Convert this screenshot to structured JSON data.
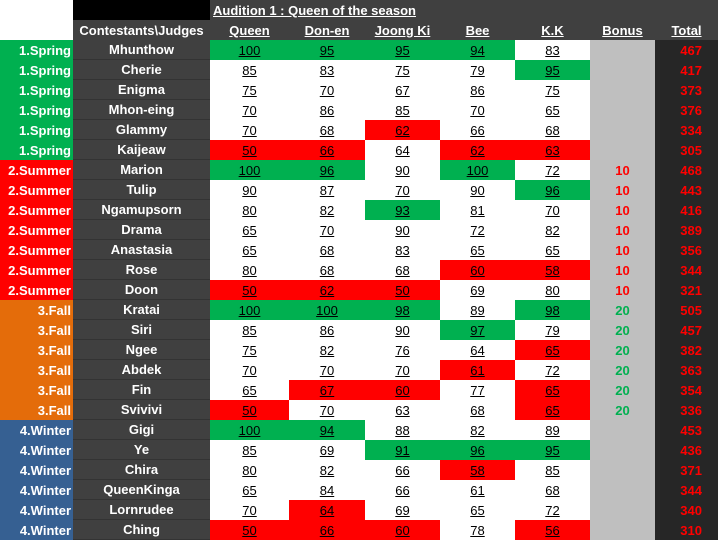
{
  "title": "Audition 1 : Queen of the season",
  "corner_label": "Contestants\\Judges",
  "judges": [
    "Queen",
    "Don-en",
    "Joong Ki",
    "Bee",
    "K.K"
  ],
  "bonus_label": "Bonus",
  "total_label": "Total",
  "colors": {
    "spring": "#00b050",
    "summer": "#ff0000",
    "fall": "#e46c0a",
    "winter": "#366092",
    "high": "#00b050",
    "low": "#ff0000",
    "normal": "#ffffff",
    "name_bg": "#404040",
    "header_bg": "#404040",
    "bonus_bg": "#bfbfbf",
    "total_bg": "#262626",
    "total_text": "#ff0000",
    "bonus_summer_text": "#ff0000",
    "bonus_fall_text": "#00b050"
  },
  "rows": [
    {
      "group": "1.Spring",
      "season": "spring",
      "name": "Mhunthow",
      "scores": [
        100,
        95,
        95,
        94,
        83
      ],
      "hl": [
        "h",
        "h",
        "h",
        "h",
        "n"
      ],
      "bonus": "",
      "total": 467
    },
    {
      "group": "1.Spring",
      "season": "spring",
      "name": "Cherie",
      "scores": [
        85,
        83,
        75,
        79,
        95
      ],
      "hl": [
        "n",
        "n",
        "n",
        "n",
        "h"
      ],
      "bonus": "",
      "total": 417
    },
    {
      "group": "1.Spring",
      "season": "spring",
      "name": "Enigma",
      "scores": [
        75,
        70,
        67,
        86,
        75
      ],
      "hl": [
        "n",
        "n",
        "n",
        "n",
        "n"
      ],
      "bonus": "",
      "total": 373
    },
    {
      "group": "1.Spring",
      "season": "spring",
      "name": "Mhon-eing",
      "scores": [
        70,
        86,
        85,
        70,
        65
      ],
      "hl": [
        "n",
        "n",
        "n",
        "n",
        "n"
      ],
      "bonus": "",
      "total": 376
    },
    {
      "group": "1.Spring",
      "season": "spring",
      "name": "Glammy",
      "scores": [
        70,
        68,
        62,
        66,
        68
      ],
      "hl": [
        "n",
        "n",
        "l",
        "n",
        "n"
      ],
      "bonus": "",
      "total": 334
    },
    {
      "group": "1.Spring",
      "season": "spring",
      "name": "Kaijeaw",
      "scores": [
        50,
        66,
        64,
        62,
        63
      ],
      "hl": [
        "l",
        "l",
        "n",
        "l",
        "l"
      ],
      "bonus": "",
      "total": 305
    },
    {
      "group": "2.Summer",
      "season": "summer",
      "name": "Marion",
      "scores": [
        100,
        96,
        90,
        100,
        72
      ],
      "hl": [
        "h",
        "h",
        "n",
        "h",
        "n"
      ],
      "bonus": "10",
      "total": 468
    },
    {
      "group": "2.Summer",
      "season": "summer",
      "name": "Tulip",
      "scores": [
        90,
        87,
        70,
        90,
        96
      ],
      "hl": [
        "n",
        "n",
        "n",
        "n",
        "h"
      ],
      "bonus": "10",
      "total": 443
    },
    {
      "group": "2.Summer",
      "season": "summer",
      "name": "Ngamupsorn",
      "scores": [
        80,
        82,
        93,
        81,
        70
      ],
      "hl": [
        "n",
        "n",
        "h",
        "n",
        "n"
      ],
      "bonus": "10",
      "total": 416
    },
    {
      "group": "2.Summer",
      "season": "summer",
      "name": "Drama",
      "scores": [
        65,
        70,
        90,
        72,
        82
      ],
      "hl": [
        "n",
        "n",
        "n",
        "n",
        "n"
      ],
      "bonus": "10",
      "total": 389
    },
    {
      "group": "2.Summer",
      "season": "summer",
      "name": "Anastasia",
      "scores": [
        65,
        68,
        83,
        65,
        65
      ],
      "hl": [
        "n",
        "n",
        "n",
        "n",
        "n"
      ],
      "bonus": "10",
      "total": 356
    },
    {
      "group": "2.Summer",
      "season": "summer",
      "name": "Rose",
      "scores": [
        80,
        68,
        68,
        60,
        58
      ],
      "hl": [
        "n",
        "n",
        "n",
        "l",
        "l"
      ],
      "bonus": "10",
      "total": 344
    },
    {
      "group": "2.Summer",
      "season": "summer",
      "name": "Doon",
      "scores": [
        50,
        62,
        50,
        69,
        80
      ],
      "hl": [
        "l",
        "l",
        "l",
        "n",
        "n"
      ],
      "bonus": "10",
      "total": 321
    },
    {
      "group": "3.Fall",
      "season": "fall",
      "name": "Kratai",
      "scores": [
        100,
        100,
        98,
        89,
        98
      ],
      "hl": [
        "h",
        "h",
        "h",
        "n",
        "h"
      ],
      "bonus": "20",
      "total": 505
    },
    {
      "group": "3.Fall",
      "season": "fall",
      "name": "Siri",
      "scores": [
        85,
        86,
        90,
        97,
        79
      ],
      "hl": [
        "n",
        "n",
        "n",
        "h",
        "n"
      ],
      "bonus": "20",
      "total": 457
    },
    {
      "group": "3.Fall",
      "season": "fall",
      "name": "Ngee",
      "scores": [
        75,
        82,
        76,
        64,
        65
      ],
      "hl": [
        "n",
        "n",
        "n",
        "n",
        "l"
      ],
      "bonus": "20",
      "total": 382
    },
    {
      "group": "3.Fall",
      "season": "fall",
      "name": "Abdek",
      "scores": [
        70,
        70,
        70,
        61,
        72
      ],
      "hl": [
        "n",
        "n",
        "n",
        "l",
        "n"
      ],
      "bonus": "20",
      "total": 363
    },
    {
      "group": "3.Fall",
      "season": "fall",
      "name": "Fin",
      "scores": [
        65,
        67,
        60,
        77,
        65
      ],
      "hl": [
        "n",
        "l",
        "l",
        "n",
        "l"
      ],
      "bonus": "20",
      "total": 354
    },
    {
      "group": "3.Fall",
      "season": "fall",
      "name": "Svivivi",
      "scores": [
        50,
        70,
        63,
        68,
        65
      ],
      "hl": [
        "l",
        "n",
        "n",
        "n",
        "l"
      ],
      "bonus": "20",
      "total": 336
    },
    {
      "group": "4.Winter",
      "season": "winter",
      "name": "Gigi",
      "scores": [
        100,
        94,
        88,
        82,
        89
      ],
      "hl": [
        "h",
        "h",
        "n",
        "n",
        "n"
      ],
      "bonus": "",
      "total": 453
    },
    {
      "group": "4.Winter",
      "season": "winter",
      "name": "Ye",
      "scores": [
        85,
        69,
        91,
        96,
        95
      ],
      "hl": [
        "n",
        "n",
        "h",
        "h",
        "h"
      ],
      "bonus": "",
      "total": 436
    },
    {
      "group": "4.Winter",
      "season": "winter",
      "name": "Chira",
      "scores": [
        80,
        82,
        66,
        58,
        85
      ],
      "hl": [
        "n",
        "n",
        "n",
        "l",
        "n"
      ],
      "bonus": "",
      "total": 371
    },
    {
      "group": "4.Winter",
      "season": "winter",
      "name": "QueenKinga",
      "scores": [
        65,
        84,
        66,
        61,
        68
      ],
      "hl": [
        "n",
        "n",
        "n",
        "n",
        "n"
      ],
      "bonus": "",
      "total": 344
    },
    {
      "group": "4.Winter",
      "season": "winter",
      "name": "Lornrudee",
      "scores": [
        70,
        64,
        69,
        65,
        72
      ],
      "hl": [
        "n",
        "l",
        "n",
        "n",
        "n"
      ],
      "bonus": "",
      "total": 340
    },
    {
      "group": "4.Winter",
      "season": "winter",
      "name": "Ching",
      "scores": [
        50,
        66,
        60,
        78,
        56
      ],
      "hl": [
        "l",
        "l",
        "l",
        "n",
        "l"
      ],
      "bonus": "",
      "total": 310
    }
  ]
}
